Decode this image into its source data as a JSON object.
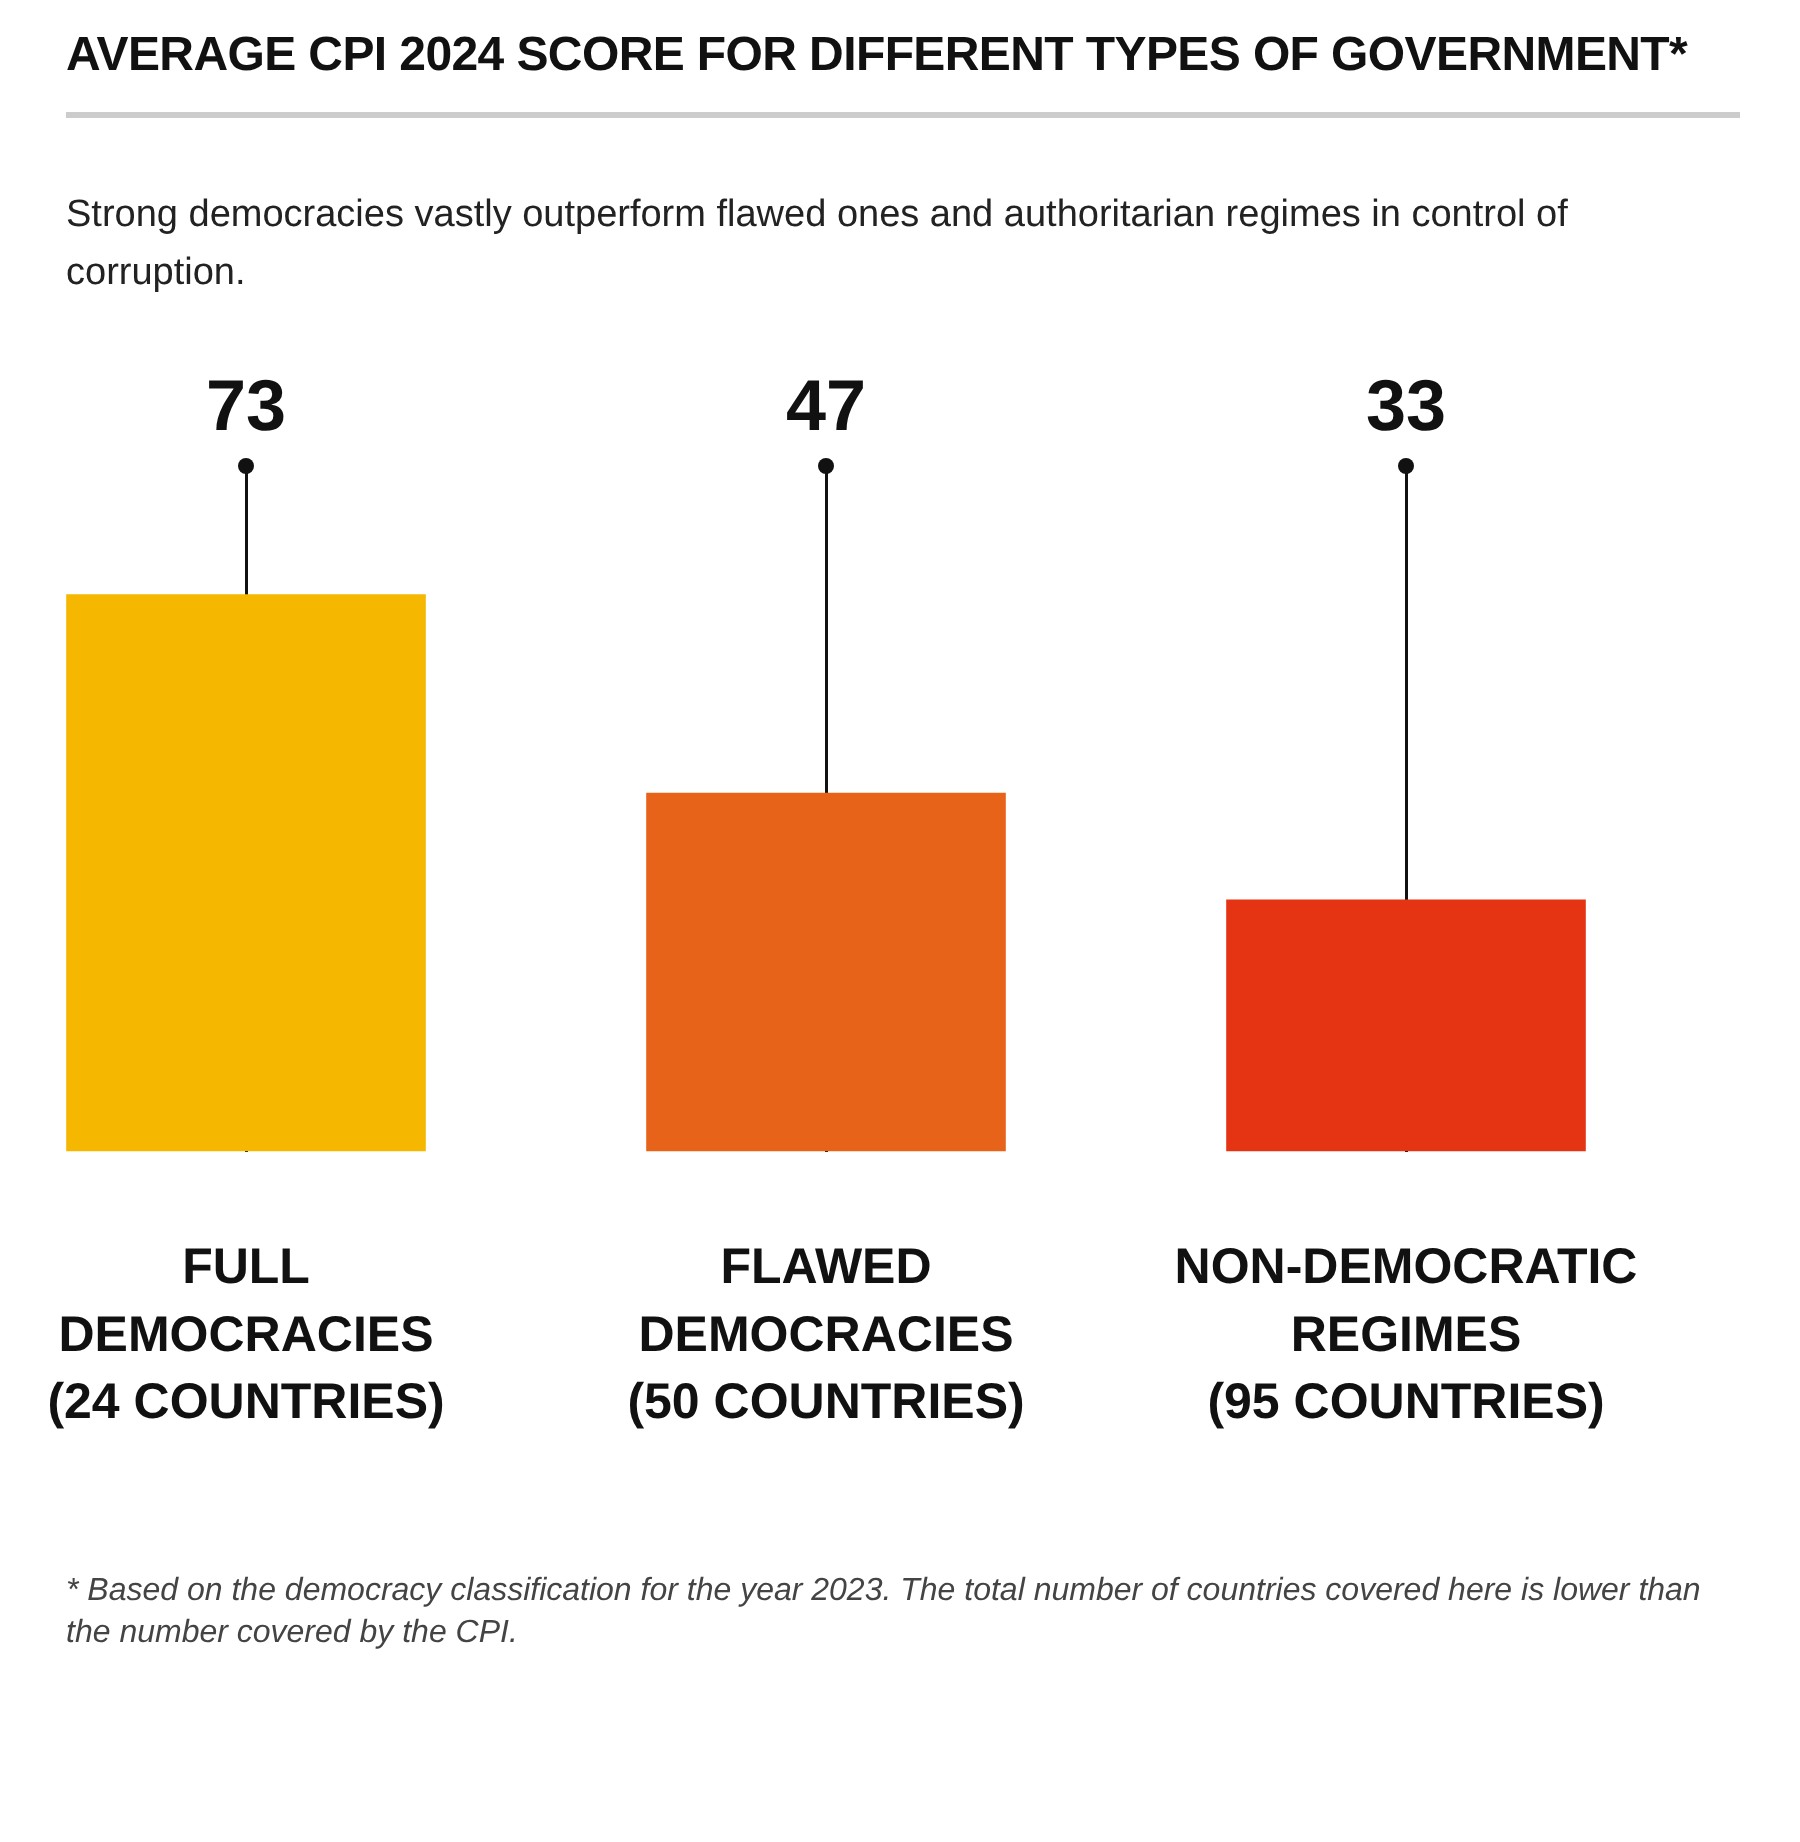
{
  "chart_data": {
    "type": "bar",
    "title": "AVERAGE CPI 2024 SCORE FOR DIFFERENT TYPES OF GOVERNMENT*",
    "subtitle": "Strong democracies vastly outperform flawed ones and authoritarian regimes in control of corruption.",
    "categories": [
      "FULL DEMOCRACIES (24 COUNTRIES)",
      "FLAWED DEMOCRACIES (50 COUNTRIES)",
      "NON-DEMOCRATIC REGIMES (95 COUNTRIES)"
    ],
    "values": [
      73,
      47,
      33
    ],
    "colors": [
      "#f5b700",
      "#e8631a",
      "#e53414"
    ],
    "data_labels": true,
    "tick_labels": "x",
    "grid": "x",
    "legend": false,
    "annotations": [
      "* Based on the democracy classification for the year 2023. The total number of countries covered here is lower than the number covered by the CPI."
    ]
  }
}
